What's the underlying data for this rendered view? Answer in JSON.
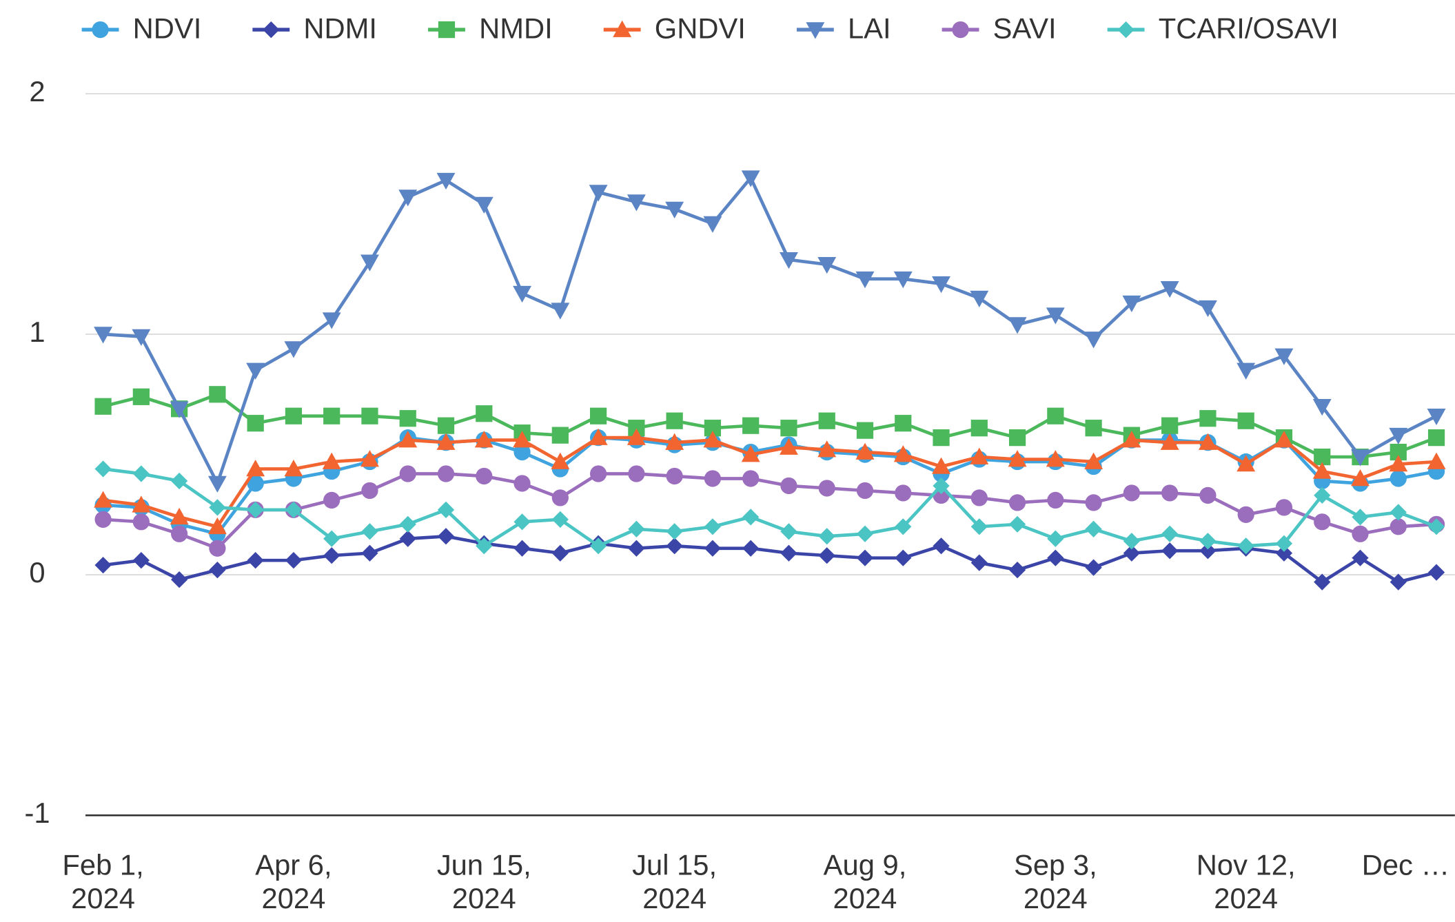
{
  "chart_data": {
    "type": "line",
    "categories": [
      "Feb 1, 2024",
      null,
      null,
      null,
      null,
      "Apr 6, 2024",
      null,
      null,
      null,
      null,
      "Jun 15, 2024",
      null,
      null,
      null,
      null,
      "Jul 15, 2024",
      null,
      null,
      null,
      null,
      "Aug 9, 2024",
      null,
      null,
      null,
      null,
      "Sep 3, 2024",
      null,
      null,
      null,
      null,
      "Nov 12, 2024",
      null,
      null,
      null,
      null,
      "Dec …"
    ],
    "ylim": [
      -1,
      2
    ],
    "yticks": [
      -1,
      0,
      1,
      2
    ],
    "grid": true,
    "legend": "top",
    "series": [
      {
        "name": "NDVI",
        "color": "#3ea3de",
        "marker": "circle",
        "values": [
          0.29,
          0.28,
          0.21,
          0.17,
          0.38,
          0.4,
          0.43,
          0.47,
          0.57,
          0.55,
          0.56,
          0.51,
          0.44,
          0.57,
          0.56,
          0.54,
          0.55,
          0.51,
          0.54,
          0.51,
          0.5,
          0.49,
          0.42,
          0.48,
          0.47,
          0.47,
          0.45,
          0.56,
          0.56,
          0.55,
          0.47,
          0.56,
          0.39,
          0.38,
          0.4,
          0.43
        ]
      },
      {
        "name": "NDMI",
        "color": "#3b45a8",
        "marker": "diamond",
        "values": [
          0.04,
          0.06,
          -0.02,
          0.02,
          0.06,
          0.06,
          0.08,
          0.09,
          0.15,
          0.16,
          0.13,
          0.11,
          0.09,
          0.13,
          0.11,
          0.12,
          0.11,
          0.11,
          0.09,
          0.08,
          0.07,
          0.07,
          0.12,
          0.05,
          0.02,
          0.07,
          0.03,
          0.09,
          0.1,
          0.1,
          0.11,
          0.09,
          -0.03,
          0.07,
          -0.03,
          0.01
        ]
      },
      {
        "name": "NMDI",
        "color": "#4cb85c",
        "marker": "square",
        "values": [
          0.7,
          0.74,
          0.69,
          0.75,
          0.63,
          0.66,
          0.66,
          0.66,
          0.65,
          0.62,
          0.67,
          0.59,
          0.58,
          0.66,
          0.61,
          0.64,
          0.61,
          0.62,
          0.61,
          0.64,
          0.6,
          0.63,
          0.57,
          0.61,
          0.57,
          0.66,
          0.61,
          0.58,
          0.62,
          0.65,
          0.64,
          0.57,
          0.49,
          0.49,
          0.51,
          0.57
        ]
      },
      {
        "name": "GNDVI",
        "color": "#f26531",
        "marker": "triangle-up",
        "values": [
          0.31,
          0.29,
          0.24,
          0.2,
          0.44,
          0.44,
          0.47,
          0.48,
          0.56,
          0.55,
          0.56,
          0.56,
          0.47,
          0.57,
          0.57,
          0.55,
          0.56,
          0.5,
          0.53,
          0.52,
          0.51,
          0.5,
          0.45,
          0.49,
          0.48,
          0.48,
          0.47,
          0.56,
          0.55,
          0.55,
          0.46,
          0.56,
          0.43,
          0.4,
          0.46,
          0.47
        ]
      },
      {
        "name": "LAI",
        "color": "#5b84c4",
        "marker": "triangle-down",
        "values": [
          1.0,
          0.99,
          0.69,
          0.38,
          0.85,
          0.94,
          1.06,
          1.3,
          1.57,
          1.64,
          1.54,
          1.17,
          1.1,
          1.59,
          1.55,
          1.52,
          1.46,
          1.65,
          1.31,
          1.29,
          1.23,
          1.23,
          1.21,
          1.15,
          1.04,
          1.08,
          0.98,
          1.13,
          1.19,
          1.11,
          0.85,
          0.91,
          0.7,
          0.49,
          0.58,
          0.66
        ]
      },
      {
        "name": "SAVI",
        "color": "#9b6dbd",
        "marker": "circle",
        "values": [
          0.23,
          0.22,
          0.17,
          0.11,
          0.27,
          0.27,
          0.31,
          0.35,
          0.42,
          0.42,
          0.41,
          0.38,
          0.32,
          0.42,
          0.42,
          0.41,
          0.4,
          0.4,
          0.37,
          0.36,
          0.35,
          0.34,
          0.33,
          0.32,
          0.3,
          0.31,
          0.3,
          0.34,
          0.34,
          0.33,
          0.25,
          0.28,
          0.22,
          0.17,
          0.2,
          0.21
        ]
      },
      {
        "name": "TCARI/OSAVI",
        "color": "#4bc4c4",
        "marker": "diamond",
        "values": [
          0.44,
          0.42,
          0.39,
          0.28,
          0.27,
          0.27,
          0.15,
          0.18,
          0.21,
          0.27,
          0.12,
          0.22,
          0.23,
          0.12,
          0.19,
          0.18,
          0.2,
          0.24,
          0.18,
          0.16,
          0.17,
          0.2,
          0.37,
          0.2,
          0.21,
          0.15,
          0.19,
          0.14,
          0.17,
          0.14,
          0.12,
          0.13,
          0.33,
          0.24,
          0.26,
          0.2
        ]
      }
    ]
  }
}
